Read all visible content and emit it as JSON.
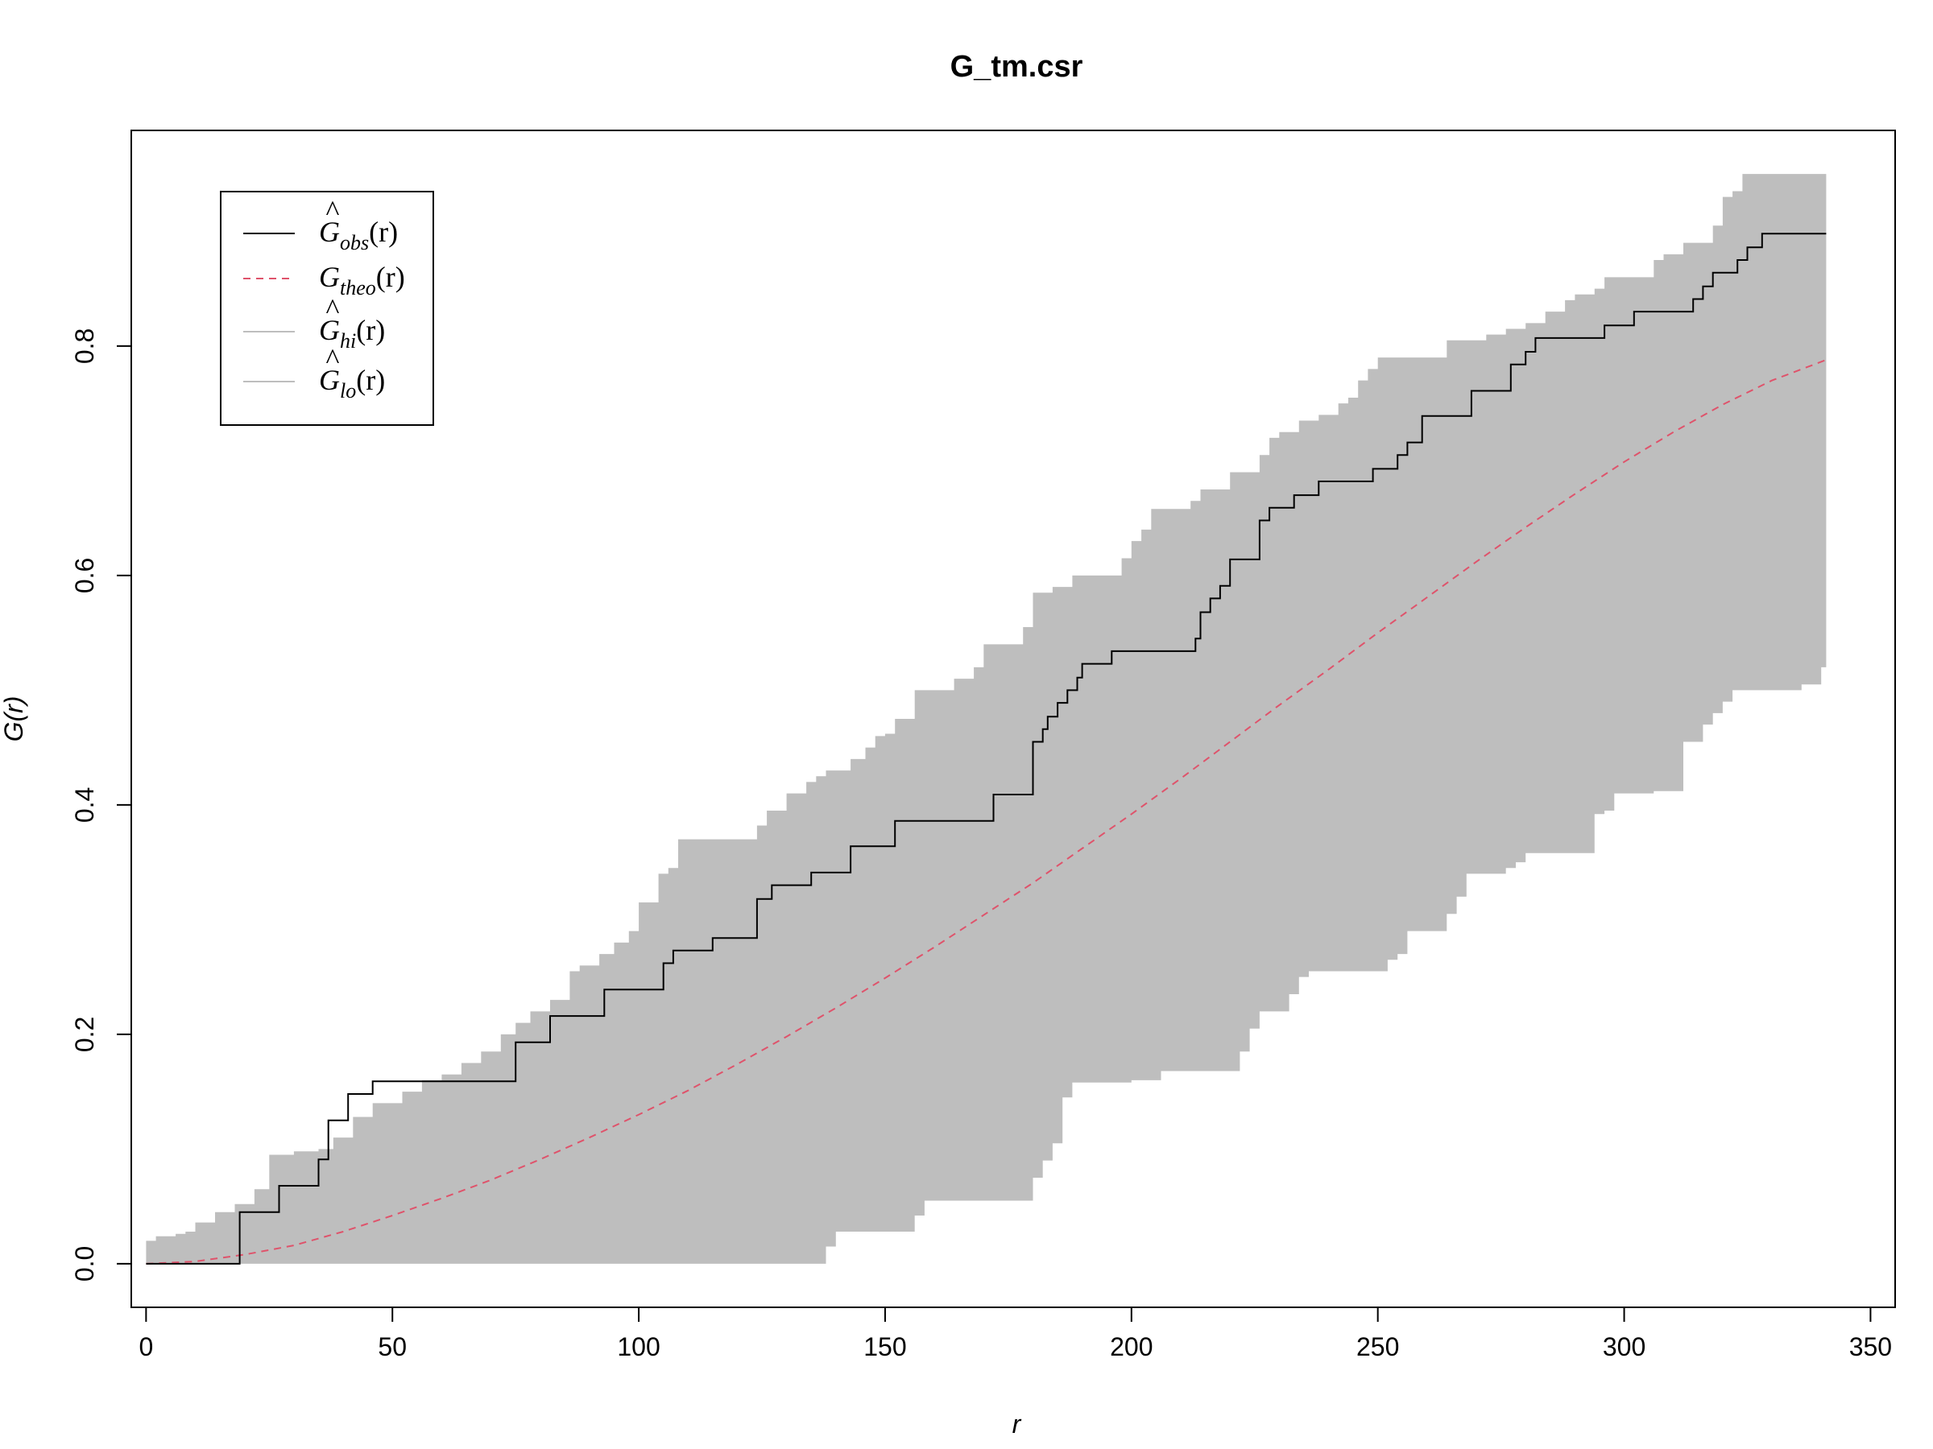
{
  "chart_data": {
    "type": "line",
    "title": "G_tm.csr",
    "xlabel": "r",
    "ylabel": "G(r)",
    "xlim": [
      -3,
      355
    ],
    "ylim": [
      -0.038,
      0.988
    ],
    "x_ticks": [
      0,
      50,
      100,
      150,
      200,
      250,
      300,
      350
    ],
    "x_tick_labels": [
      "0",
      "50",
      "100",
      "150",
      "200",
      "250",
      "300",
      "350"
    ],
    "y_ticks": [
      0.0,
      0.2,
      0.4,
      0.6,
      0.8
    ],
    "y_tick_labels": [
      "0.0",
      "0.2",
      "0.4",
      "0.6",
      "0.8"
    ],
    "legend_position": "top-left",
    "legend": [
      {
        "symbol": "G",
        "hat": true,
        "sub": "obs",
        "arg": "(r)",
        "color": "#000000",
        "dash": "solid"
      },
      {
        "symbol": "G",
        "hat": false,
        "sub": "theo",
        "arg": "(r)",
        "color": "#DF536B",
        "dash": "dashed"
      },
      {
        "symbol": "G",
        "hat": true,
        "sub": "hi",
        "arg": "(r)",
        "color": "#BEBEBE",
        "dash": "solid"
      },
      {
        "symbol": "G",
        "hat": true,
        "sub": "lo",
        "arg": "(r)",
        "color": "#BEBEBE",
        "dash": "solid"
      }
    ],
    "colors": {
      "obs": "#000000",
      "theo": "#DF536B",
      "envelope": "#BEBEBE"
    },
    "series": [
      {
        "name": "obs",
        "step": true,
        "x": [
          0,
          16,
          19,
          25,
          27,
          32,
          35,
          37,
          41,
          43,
          46,
          73,
          75,
          80,
          82,
          91,
          93,
          104,
          105,
          107,
          113,
          115,
          123,
          124,
          127,
          131,
          135,
          142,
          143,
          150,
          152,
          171,
          172,
          179,
          180,
          182,
          183,
          185,
          187,
          189,
          190,
          193,
          196,
          212,
          213,
          214,
          216,
          218,
          220,
          224,
          226,
          228,
          233,
          236,
          238,
          247,
          249,
          251,
          254,
          256,
          259,
          267,
          269,
          275,
          277,
          280,
          282,
          295,
          296,
          300,
          302,
          311,
          314,
          316,
          318,
          320,
          323,
          325,
          328,
          341
        ],
        "y": [
          0.0,
          0.0,
          0.045,
          0.045,
          0.068,
          0.068,
          0.091,
          0.125,
          0.148,
          0.148,
          0.159,
          0.159,
          0.193,
          0.193,
          0.216,
          0.216,
          0.239,
          0.239,
          0.262,
          0.273,
          0.273,
          0.284,
          0.284,
          0.318,
          0.33,
          0.33,
          0.341,
          0.341,
          0.364,
          0.364,
          0.386,
          0.386,
          0.409,
          0.409,
          0.455,
          0.466,
          0.477,
          0.489,
          0.5,
          0.511,
          0.523,
          0.523,
          0.534,
          0.534,
          0.545,
          0.568,
          0.58,
          0.591,
          0.614,
          0.614,
          0.648,
          0.659,
          0.67,
          0.67,
          0.682,
          0.682,
          0.693,
          0.693,
          0.705,
          0.716,
          0.739,
          0.739,
          0.761,
          0.761,
          0.784,
          0.795,
          0.807,
          0.807,
          0.818,
          0.818,
          0.83,
          0.83,
          0.841,
          0.852,
          0.864,
          0.864,
          0.875,
          0.886,
          0.898,
          0.898
        ]
      },
      {
        "name": "theo",
        "x": [
          0,
          10,
          20,
          30,
          40,
          50,
          60,
          70,
          80,
          90,
          100,
          110,
          120,
          130,
          140,
          150,
          160,
          170,
          180,
          190,
          200,
          210,
          220,
          230,
          240,
          250,
          260,
          270,
          280,
          290,
          300,
          310,
          320,
          330,
          341
        ],
        "y": [
          0.0,
          0.002,
          0.008,
          0.016,
          0.028,
          0.042,
          0.057,
          0.073,
          0.091,
          0.11,
          0.13,
          0.151,
          0.174,
          0.198,
          0.223,
          0.249,
          0.276,
          0.304,
          0.332,
          0.362,
          0.392,
          0.423,
          0.455,
          0.487,
          0.518,
          0.55,
          0.581,
          0.612,
          0.642,
          0.671,
          0.699,
          0.725,
          0.749,
          0.77,
          0.788
        ]
      },
      {
        "name": "hi",
        "step": true,
        "x": [
          0,
          2,
          6,
          8,
          10,
          14,
          18,
          22,
          25,
          30,
          35,
          38,
          42,
          46,
          52,
          56,
          60,
          64,
          68,
          72,
          75,
          78,
          82,
          86,
          88,
          92,
          95,
          98,
          100,
          104,
          106,
          108,
          112,
          120,
          124,
          126,
          128,
          130,
          134,
          136,
          138,
          140,
          143,
          146,
          148,
          150,
          152,
          156,
          160,
          164,
          168,
          170,
          176,
          178,
          180,
          184,
          188,
          196,
          198,
          200,
          202,
          204,
          206,
          210,
          212,
          214,
          220,
          222,
          226,
          228,
          230,
          234,
          238,
          242,
          244,
          246,
          248,
          250,
          252,
          264,
          268,
          272,
          276,
          280,
          284,
          288,
          290,
          294,
          296,
          300,
          306,
          308,
          312,
          318,
          320,
          322,
          324,
          326,
          341
        ],
        "y": [
          0.02,
          0.024,
          0.026,
          0.028,
          0.036,
          0.045,
          0.052,
          0.065,
          0.095,
          0.098,
          0.1,
          0.11,
          0.128,
          0.14,
          0.15,
          0.16,
          0.165,
          0.175,
          0.185,
          0.2,
          0.21,
          0.22,
          0.23,
          0.255,
          0.26,
          0.27,
          0.28,
          0.29,
          0.315,
          0.34,
          0.345,
          0.37,
          0.37,
          0.37,
          0.382,
          0.395,
          0.395,
          0.41,
          0.42,
          0.425,
          0.43,
          0.43,
          0.44,
          0.45,
          0.46,
          0.462,
          0.475,
          0.5,
          0.5,
          0.51,
          0.52,
          0.54,
          0.54,
          0.555,
          0.585,
          0.59,
          0.6,
          0.6,
          0.615,
          0.63,
          0.64,
          0.658,
          0.658,
          0.658,
          0.665,
          0.675,
          0.69,
          0.69,
          0.705,
          0.72,
          0.725,
          0.735,
          0.74,
          0.75,
          0.755,
          0.77,
          0.78,
          0.79,
          0.79,
          0.805,
          0.805,
          0.81,
          0.815,
          0.82,
          0.83,
          0.84,
          0.845,
          0.85,
          0.86,
          0.86,
          0.875,
          0.88,
          0.89,
          0.905,
          0.93,
          0.935,
          0.95,
          0.95,
          0.95
        ]
      },
      {
        "name": "lo",
        "step": true,
        "x": [
          0,
          136,
          138,
          140,
          154,
          156,
          158,
          176,
          178,
          180,
          182,
          184,
          186,
          188,
          196,
          200,
          204,
          206,
          220,
          222,
          224,
          226,
          230,
          232,
          234,
          236,
          238,
          250,
          252,
          254,
          256,
          262,
          264,
          266,
          268,
          270,
          276,
          278,
          280,
          290,
          294,
          296,
          298,
          302,
          306,
          312,
          314,
          316,
          318,
          320,
          322,
          326,
          330,
          334,
          336,
          340,
          341
        ],
        "y": [
          0.0,
          0.0,
          0.015,
          0.028,
          0.028,
          0.042,
          0.055,
          0.055,
          0.055,
          0.075,
          0.09,
          0.105,
          0.145,
          0.158,
          0.158,
          0.16,
          0.16,
          0.168,
          0.168,
          0.185,
          0.205,
          0.22,
          0.22,
          0.235,
          0.25,
          0.255,
          0.255,
          0.255,
          0.265,
          0.27,
          0.29,
          0.29,
          0.305,
          0.32,
          0.34,
          0.34,
          0.345,
          0.35,
          0.358,
          0.358,
          0.392,
          0.395,
          0.41,
          0.41,
          0.412,
          0.455,
          0.455,
          0.47,
          0.48,
          0.49,
          0.5,
          0.5,
          0.5,
          0.5,
          0.505,
          0.52,
          0.523
        ]
      }
    ]
  }
}
